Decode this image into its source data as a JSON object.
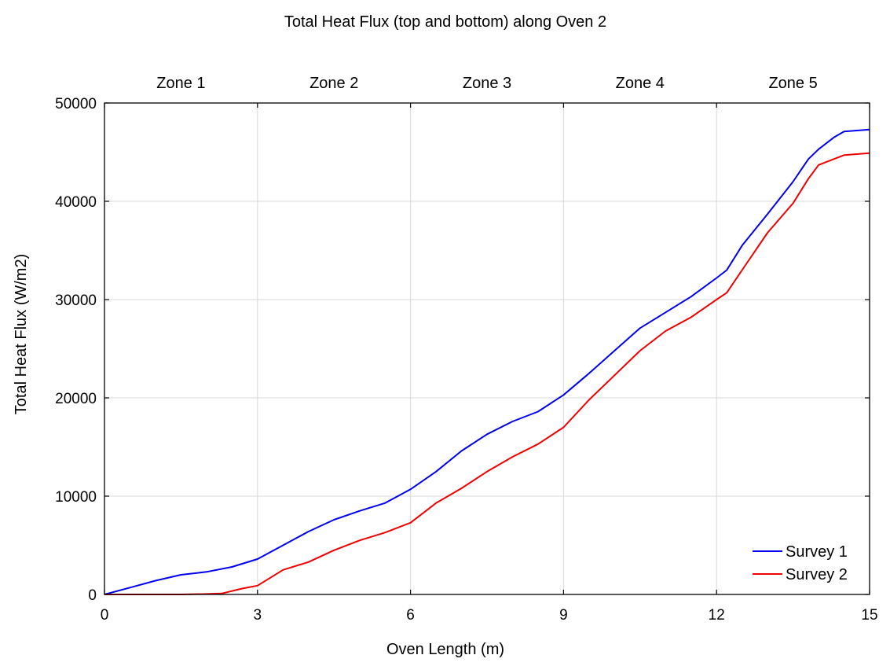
{
  "chart_data": {
    "type": "line",
    "title": "Total Heat Flux (top and bottom) along Oven 2",
    "xlabel": "Oven Length (m)",
    "ylabel": "Total Heat Flux (W/m2)",
    "xlim": [
      0,
      15
    ],
    "ylim": [
      0,
      50000
    ],
    "x_ticks": [
      0,
      3,
      6,
      9,
      12,
      15
    ],
    "y_ticks": [
      0,
      10000,
      20000,
      30000,
      40000,
      50000
    ],
    "grid": true,
    "legend_position": "bottom-right",
    "zones": [
      "Zone 1",
      "Zone 2",
      "Zone 3",
      "Zone 4",
      "Zone 5"
    ],
    "zone_boundaries": [
      0,
      3,
      6,
      9,
      12,
      15
    ],
    "series": [
      {
        "name": "Survey 1",
        "color": "#0000ee",
        "x": [
          0,
          0.5,
          1,
          1.5,
          2,
          2.5,
          3,
          3.5,
          4,
          4.5,
          5,
          5.5,
          6,
          6.5,
          7,
          7.5,
          8,
          8.5,
          9,
          9.5,
          10,
          10.5,
          11,
          11.5,
          12,
          12.2,
          12.5,
          13,
          13.5,
          13.8,
          14,
          14.3,
          14.5,
          15
        ],
        "y": [
          0,
          700,
          1400,
          2000,
          2300,
          2800,
          3600,
          5000,
          6400,
          7600,
          8500,
          9300,
          10700,
          12500,
          14600,
          16300,
          17600,
          18600,
          20300,
          22500,
          24800,
          27100,
          28700,
          30300,
          32200,
          33000,
          35500,
          38700,
          42000,
          44300,
          45300,
          46500,
          47100,
          47300
        ]
      },
      {
        "name": "Survey 2",
        "color": "#ee0000",
        "x": [
          0,
          0.5,
          1,
          1.5,
          2,
          2.3,
          2.7,
          3,
          3.5,
          4,
          4.5,
          5,
          5.5,
          6,
          6.5,
          7,
          7.5,
          8,
          8.5,
          9,
          9.5,
          10,
          10.5,
          11,
          11.5,
          12,
          12.2,
          12.5,
          13,
          13.5,
          13.8,
          14,
          14.3,
          14.5,
          15
        ],
        "y": [
          0,
          0,
          0,
          0,
          50,
          100,
          600,
          900,
          2500,
          3300,
          4500,
          5500,
          6300,
          7300,
          9300,
          10800,
          12500,
          14000,
          15300,
          17000,
          19800,
          22300,
          24800,
          26800,
          28200,
          30000,
          30700,
          33000,
          36800,
          39800,
          42300,
          43700,
          44300,
          44700,
          44900
        ]
      }
    ]
  }
}
